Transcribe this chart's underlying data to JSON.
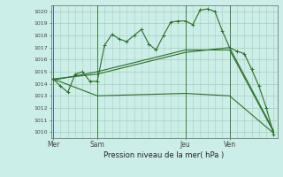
{
  "background_color": "#cceee8",
  "grid_color": "#aaccbb",
  "line_color": "#2d6e2d",
  "title": "Pression niveau de la mer( hPa )",
  "ylim": [
    1009.5,
    1020.5
  ],
  "yticks": [
    1010,
    1011,
    1012,
    1013,
    1014,
    1015,
    1016,
    1017,
    1018,
    1019,
    1020
  ],
  "xlim": [
    -0.3,
    30.5
  ],
  "xtick_labels": [
    "Mer",
    "Sam",
    "Jeu",
    "Ven"
  ],
  "xtick_positions": [
    0,
    6,
    18,
    24
  ],
  "vline_positions": [
    0,
    6,
    18,
    24
  ],
  "line1_x": [
    0,
    1,
    2,
    3,
    4,
    5,
    6,
    7,
    8,
    9,
    10,
    11,
    12,
    13,
    14,
    15,
    16,
    17,
    18,
    19,
    20,
    21,
    22,
    23,
    24,
    25,
    26,
    27,
    28,
    29,
    30
  ],
  "line1_y": [
    1014.4,
    1013.8,
    1013.3,
    1014.8,
    1015.0,
    1014.2,
    1014.2,
    1017.2,
    1018.1,
    1017.7,
    1017.5,
    1018.0,
    1018.5,
    1017.3,
    1016.8,
    1018.0,
    1019.1,
    1019.2,
    1019.2,
    1018.9,
    1020.1,
    1020.2,
    1020.0,
    1018.4,
    1017.0,
    1016.7,
    1016.5,
    1015.2,
    1013.8,
    1012.0,
    1009.8
  ],
  "line2_x": [
    0,
    6,
    18,
    24,
    30
  ],
  "line2_y": [
    1014.4,
    1014.8,
    1016.6,
    1017.0,
    1010.1
  ],
  "line3_x": [
    0,
    6,
    18,
    24,
    30
  ],
  "line3_y": [
    1014.3,
    1015.0,
    1016.8,
    1016.8,
    1010.0
  ],
  "line4_x": [
    0,
    6,
    18,
    24,
    30
  ],
  "line4_y": [
    1014.4,
    1013.0,
    1013.2,
    1013.0,
    1009.9
  ]
}
